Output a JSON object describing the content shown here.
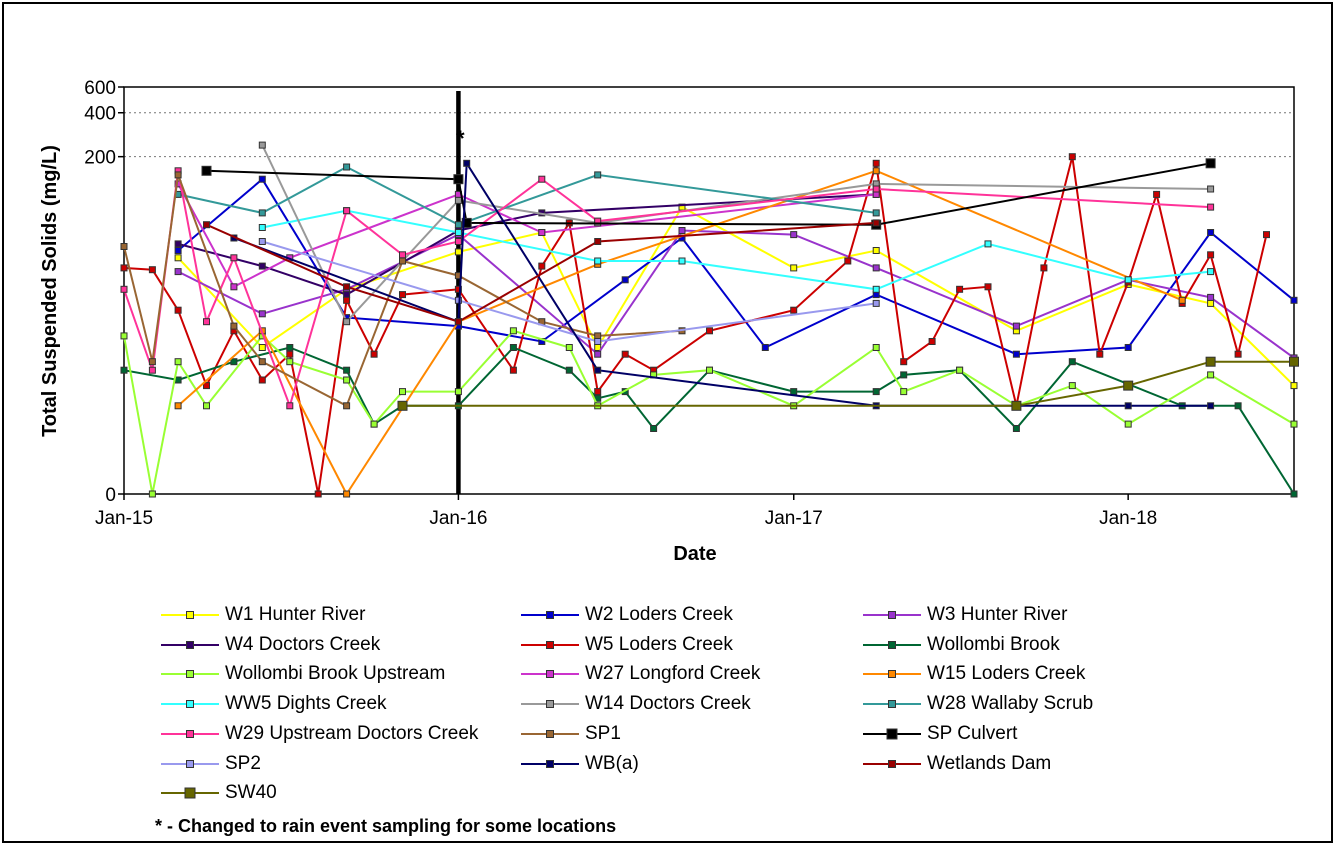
{
  "chart_data": {
    "type": "line",
    "xlabel": "Date",
    "ylabel": "Total Suspended Solids (mg/L)",
    "y_scale": "log",
    "y_ticks": [
      0,
      200,
      400,
      600
    ],
    "x_ticks": [
      "Jan-15",
      "Jan-16",
      "Jan-17",
      "Jan-18"
    ],
    "x_range": [
      "2015-01-01",
      "2018-07-01"
    ],
    "grid": "dotted horizontal lines at 200, 400 and 600",
    "legend": "bottom",
    "annotation_text": "*",
    "footnote": "* - Changed to rain event sampling for some locations",
    "event_line_date": "2016-01-01",
    "series": [
      {
        "name": "W1 Hunter River",
        "color": "#ffff00",
        "marker": "square",
        "points": [
          [
            "2015-03-01",
            40
          ],
          [
            "2015-06-01",
            9
          ],
          [
            "2015-09-01",
            24
          ],
          [
            "2016-01-01",
            44
          ],
          [
            "2016-04-01",
            60
          ],
          [
            "2016-06-01",
            9
          ],
          [
            "2016-09-01",
            90
          ],
          [
            "2017-01-01",
            34
          ],
          [
            "2017-04-01",
            45
          ],
          [
            "2017-09-01",
            12
          ],
          [
            "2018-01-01",
            26
          ],
          [
            "2018-04-01",
            19
          ],
          [
            "2018-07-01",
            4.5
          ]
        ]
      },
      {
        "name": "W2 Loders Creek",
        "color": "#0000cc",
        "marker": "square",
        "points": [
          [
            "2015-03-01",
            45
          ],
          [
            "2015-06-01",
            140
          ],
          [
            "2015-09-01",
            15
          ],
          [
            "2016-01-01",
            13
          ],
          [
            "2016-04-01",
            10
          ],
          [
            "2016-07-01",
            28
          ],
          [
            "2016-09-01",
            55
          ],
          [
            "2016-12-01",
            9
          ],
          [
            "2017-04-01",
            22
          ],
          [
            "2017-09-01",
            8
          ],
          [
            "2018-01-01",
            9
          ],
          [
            "2018-04-01",
            60
          ],
          [
            "2018-07-01",
            20
          ]
        ]
      },
      {
        "name": "W3 Hunter River",
        "color": "#9933cc",
        "marker": "square",
        "points": [
          [
            "2015-03-01",
            32
          ],
          [
            "2015-06-01",
            16
          ],
          [
            "2015-09-01",
            24
          ],
          [
            "2016-01-01",
            58
          ],
          [
            "2016-06-01",
            8
          ],
          [
            "2016-09-01",
            62
          ],
          [
            "2017-01-01",
            58
          ],
          [
            "2017-04-01",
            34
          ],
          [
            "2017-09-01",
            13
          ],
          [
            "2018-01-01",
            28
          ],
          [
            "2018-04-01",
            21
          ],
          [
            "2018-07-01",
            7.5
          ]
        ]
      },
      {
        "name": "W4 Doctors Creek",
        "color": "#330066",
        "marker": "square",
        "points": [
          [
            "2015-03-01",
            50
          ],
          [
            "2015-06-01",
            35
          ],
          [
            "2015-09-01",
            22
          ],
          [
            "2016-01-01",
            62
          ],
          [
            "2016-04-01",
            82
          ],
          [
            "2017-04-01",
            110
          ]
        ]
      },
      {
        "name": "W5 Loders Creek",
        "color": "#cc0000",
        "marker": "square",
        "points": [
          [
            "2015-01-01",
            34
          ],
          [
            "2015-02-01",
            33
          ],
          [
            "2015-03-01",
            17
          ],
          [
            "2015-04-01",
            4.5
          ],
          [
            "2015-05-01",
            12
          ],
          [
            "2015-06-01",
            5
          ],
          [
            "2015-07-01",
            8
          ],
          [
            "2015-08-01",
            0
          ],
          [
            "2015-09-01",
            20
          ],
          [
            "2015-10-01",
            8
          ],
          [
            "2015-11-01",
            22
          ],
          [
            "2016-01-01",
            24
          ],
          [
            "2016-03-01",
            6
          ],
          [
            "2016-04-01",
            35
          ],
          [
            "2016-05-01",
            70
          ],
          [
            "2016-06-01",
            4
          ],
          [
            "2016-07-01",
            8
          ],
          [
            "2016-08-01",
            6
          ],
          [
            "2016-10-01",
            12
          ],
          [
            "2017-01-01",
            17
          ],
          [
            "2017-03-01",
            38
          ],
          [
            "2017-04-01",
            180
          ],
          [
            "2017-05-01",
            7
          ],
          [
            "2017-06-01",
            10
          ],
          [
            "2017-07-01",
            24
          ],
          [
            "2017-08-01",
            25
          ],
          [
            "2017-09-01",
            3
          ],
          [
            "2017-10-01",
            34
          ],
          [
            "2017-11-01",
            200
          ],
          [
            "2017-12-01",
            8
          ],
          [
            "2018-01-01",
            27
          ],
          [
            "2018-02-01",
            110
          ],
          [
            "2018-03-01",
            19
          ],
          [
            "2018-04-01",
            42
          ],
          [
            "2018-05-01",
            8
          ],
          [
            "2018-06-01",
            58
          ]
        ]
      },
      {
        "name": "Wollombi Brook",
        "color": "#006633",
        "marker": "square",
        "points": [
          [
            "2015-01-01",
            6
          ],
          [
            "2015-03-01",
            5
          ],
          [
            "2015-05-01",
            7
          ],
          [
            "2015-07-01",
            9
          ],
          [
            "2015-09-01",
            6
          ],
          [
            "2015-10-01",
            2
          ],
          [
            "2015-11-01",
            3
          ],
          [
            "2016-01-01",
            3
          ],
          [
            "2016-03-01",
            9
          ],
          [
            "2016-05-01",
            6
          ],
          [
            "2016-06-01",
            3.5
          ],
          [
            "2016-07-01",
            4
          ],
          [
            "2016-08-01",
            1.8
          ],
          [
            "2016-10-01",
            6
          ],
          [
            "2017-01-01",
            4
          ],
          [
            "2017-04-01",
            4
          ],
          [
            "2017-05-01",
            5.5
          ],
          [
            "2017-07-01",
            6
          ],
          [
            "2017-09-01",
            1.8
          ],
          [
            "2017-11-01",
            7
          ],
          [
            "2018-03-01",
            3
          ],
          [
            "2018-05-01",
            3
          ],
          [
            "2018-07-01",
            0
          ]
        ]
      },
      {
        "name": "Wollombi Brook Upstream",
        "color": "#99ff33",
        "marker": "square",
        "points": [
          [
            "2015-01-01",
            11
          ],
          [
            "2015-02-01",
            0
          ],
          [
            "2015-03-01",
            7
          ],
          [
            "2015-04-01",
            3
          ],
          [
            "2015-06-01",
            11
          ],
          [
            "2015-07-01",
            7
          ],
          [
            "2015-09-01",
            5
          ],
          [
            "2015-10-01",
            2
          ],
          [
            "2015-11-01",
            4
          ],
          [
            "2016-01-01",
            4
          ],
          [
            "2016-03-01",
            12
          ],
          [
            "2016-05-01",
            9
          ],
          [
            "2016-06-01",
            3
          ],
          [
            "2016-08-01",
            5.5
          ],
          [
            "2016-10-01",
            6
          ],
          [
            "2017-01-01",
            3
          ],
          [
            "2017-04-01",
            9
          ],
          [
            "2017-05-01",
            4
          ],
          [
            "2017-07-01",
            6
          ],
          [
            "2017-09-01",
            3
          ],
          [
            "2017-11-01",
            4.5
          ],
          [
            "2018-01-01",
            2
          ],
          [
            "2018-04-01",
            5.5
          ],
          [
            "2018-07-01",
            2
          ]
        ]
      },
      {
        "name": "W27 Longford Creek",
        "color": "#cc33cc",
        "marker": "square",
        "points": [
          [
            "2015-03-01",
            130
          ],
          [
            "2015-05-01",
            25
          ],
          [
            "2015-07-01",
            40
          ],
          [
            "2016-01-01",
            110
          ],
          [
            "2016-04-01",
            60
          ],
          [
            "2017-04-01",
            110
          ]
        ]
      },
      {
        "name": "W15 Loders Creek",
        "color": "#ff8800",
        "marker": "square",
        "points": [
          [
            "2015-03-01",
            3
          ],
          [
            "2015-06-01",
            12
          ],
          [
            "2015-09-01",
            0
          ],
          [
            "2016-01-01",
            14
          ],
          [
            "2016-06-01",
            36
          ],
          [
            "2017-04-01",
            160
          ],
          [
            "2018-03-01",
            20
          ]
        ]
      },
      {
        "name": "WW5 Dights Creek",
        "color": "#33ffff",
        "marker": "square",
        "points": [
          [
            "2015-06-01",
            65
          ],
          [
            "2015-09-01",
            85
          ],
          [
            "2016-01-01",
            60
          ],
          [
            "2016-06-01",
            38
          ],
          [
            "2016-09-01",
            38
          ],
          [
            "2017-04-01",
            24
          ],
          [
            "2017-08-01",
            50
          ],
          [
            "2018-01-01",
            28
          ],
          [
            "2018-04-01",
            32
          ]
        ]
      },
      {
        "name": "W14 Doctors Creek",
        "color": "#999999",
        "marker": "square",
        "points": [
          [
            "2015-06-01",
            240
          ],
          [
            "2015-09-01",
            14
          ],
          [
            "2016-01-01",
            100
          ],
          [
            "2016-06-01",
            70
          ],
          [
            "2017-04-01",
            130
          ],
          [
            "2018-04-01",
            120
          ]
        ]
      },
      {
        "name": "W28 Wallaby Scrub",
        "color": "#339999",
        "marker": "square",
        "points": [
          [
            "2015-03-01",
            110
          ],
          [
            "2015-06-01",
            82
          ],
          [
            "2015-09-01",
            170
          ],
          [
            "2016-01-01",
            68
          ],
          [
            "2016-06-01",
            150
          ],
          [
            "2017-04-01",
            82
          ]
        ]
      },
      {
        "name": "W29 Upstream Doctors Creek",
        "color": "#ff3399",
        "marker": "square",
        "points": [
          [
            "2015-01-01",
            24
          ],
          [
            "2015-02-01",
            6
          ],
          [
            "2015-03-01",
            160
          ],
          [
            "2015-04-01",
            14
          ],
          [
            "2015-05-01",
            40
          ],
          [
            "2015-07-01",
            3
          ],
          [
            "2015-09-01",
            85
          ],
          [
            "2015-11-01",
            42
          ],
          [
            "2016-01-01",
            52
          ],
          [
            "2016-04-01",
            140
          ],
          [
            "2016-06-01",
            72
          ],
          [
            "2017-04-01",
            120
          ],
          [
            "2018-04-01",
            90
          ]
        ]
      },
      {
        "name": "SP1",
        "color": "#996633",
        "marker": "square",
        "points": [
          [
            "2015-01-01",
            48
          ],
          [
            "2015-02-01",
            7
          ],
          [
            "2015-03-01",
            150
          ],
          [
            "2015-05-01",
            13
          ],
          [
            "2015-06-01",
            7
          ],
          [
            "2015-09-01",
            3
          ],
          [
            "2015-11-01",
            38
          ],
          [
            "2016-01-01",
            30
          ],
          [
            "2016-04-01",
            14
          ],
          [
            "2016-06-01",
            11
          ],
          [
            "2016-09-01",
            12
          ]
        ]
      },
      {
        "name": "SP Culvert",
        "color": "#000000",
        "marker": "square",
        "points": [
          [
            "2015-04-01",
            160
          ],
          [
            "2016-01-01",
            140
          ],
          [
            "2016-01-10",
            70
          ],
          [
            "2017-04-01",
            68
          ],
          [
            "2018-04-01",
            180
          ]
        ]
      },
      {
        "name": "SP2",
        "color": "#9999ee",
        "marker": "square",
        "points": [
          [
            "2015-06-01",
            52
          ],
          [
            "2016-01-01",
            20
          ],
          [
            "2016-06-01",
            10
          ],
          [
            "2017-04-01",
            19
          ]
        ]
      },
      {
        "name": "WB(a)",
        "color": "#000066",
        "marker": "square",
        "points": [
          [
            "2015-05-01",
            55
          ],
          [
            "2016-01-01",
            14
          ],
          [
            "2016-01-10",
            180
          ],
          [
            "2016-06-01",
            6
          ],
          [
            "2017-04-01",
            3
          ],
          [
            "2017-09-01",
            3
          ],
          [
            "2018-01-01",
            3
          ],
          [
            "2018-04-01",
            3
          ]
        ]
      },
      {
        "name": "Wetlands Dam",
        "color": "#990000",
        "marker": "square",
        "points": [
          [
            "2015-04-01",
            68
          ],
          [
            "2015-09-01",
            25
          ],
          [
            "2016-01-01",
            14
          ],
          [
            "2016-06-01",
            52
          ],
          [
            "2017-04-01",
            70
          ]
        ]
      },
      {
        "name": "SW40",
        "color": "#666600",
        "marker": "square",
        "points": [
          [
            "2015-11-01",
            3
          ],
          [
            "2017-09-01",
            3
          ],
          [
            "2018-01-01",
            4.5
          ],
          [
            "2018-04-01",
            7
          ],
          [
            "2018-07-01",
            7
          ]
        ]
      }
    ]
  }
}
